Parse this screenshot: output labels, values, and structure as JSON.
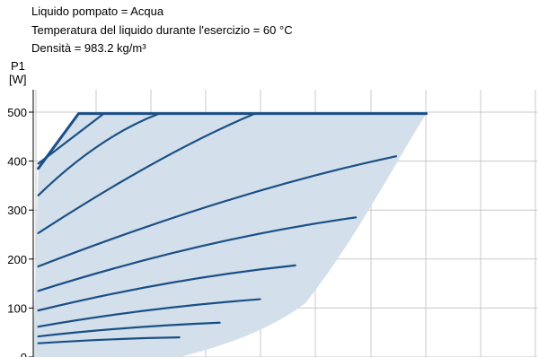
{
  "header": {
    "line1": "Liquido pompato = Acqua",
    "line2": "Temperatura del liquido durante l'esercizio = 60 °C",
    "line3": "Densità = 983.2 kg/m³"
  },
  "chart_data": {
    "type": "line",
    "ylabel_line1": "P1",
    "ylabel_line2": "[W]",
    "yticks": [
      "0",
      "100",
      "200",
      "300",
      "400",
      "500"
    ],
    "ylim": [
      0,
      520
    ],
    "xlim": [
      0,
      100
    ],
    "grid": true,
    "colors": {
      "curve": "#1a4f86",
      "envelope": "#d3dfea",
      "grid": "#c8c8c8"
    },
    "envelope": [
      [
        1,
        385
      ],
      [
        9,
        497
      ],
      [
        78,
        497
      ],
      [
        72,
        400
      ],
      [
        64,
        240
      ],
      [
        54,
        110
      ],
      [
        45,
        40
      ],
      [
        29,
        0
      ],
      [
        0,
        0
      ]
    ],
    "series": [
      {
        "points": [
          [
            1,
            28
          ],
          [
            16,
            38
          ],
          [
            29,
            40
          ]
        ]
      },
      {
        "points": [
          [
            1,
            42
          ],
          [
            18,
            62
          ],
          [
            37,
            70
          ]
        ]
      },
      {
        "points": [
          [
            1,
            62
          ],
          [
            22,
            100
          ],
          [
            45,
            118
          ]
        ]
      },
      {
        "points": [
          [
            1,
            95
          ],
          [
            27,
            160
          ],
          [
            52,
            187
          ]
        ]
      },
      {
        "points": [
          [
            1,
            135
          ],
          [
            34,
            242
          ],
          [
            64,
            285
          ]
        ]
      },
      {
        "points": [
          [
            1,
            185
          ],
          [
            40,
            340
          ],
          [
            72,
            410
          ]
        ]
      },
      {
        "points": [
          [
            1,
            253
          ],
          [
            26,
            420
          ],
          [
            44,
            497
          ]
        ]
      },
      {
        "points": [
          [
            1,
            330
          ],
          [
            13,
            450
          ],
          [
            25,
            497
          ]
        ]
      },
      {
        "points": [
          [
            1,
            395
          ],
          [
            8,
            450
          ],
          [
            14,
            497
          ]
        ]
      },
      {
        "points": [
          [
            1,
            385
          ],
          [
            9,
            497
          ],
          [
            78,
            497
          ]
        ]
      }
    ]
  }
}
